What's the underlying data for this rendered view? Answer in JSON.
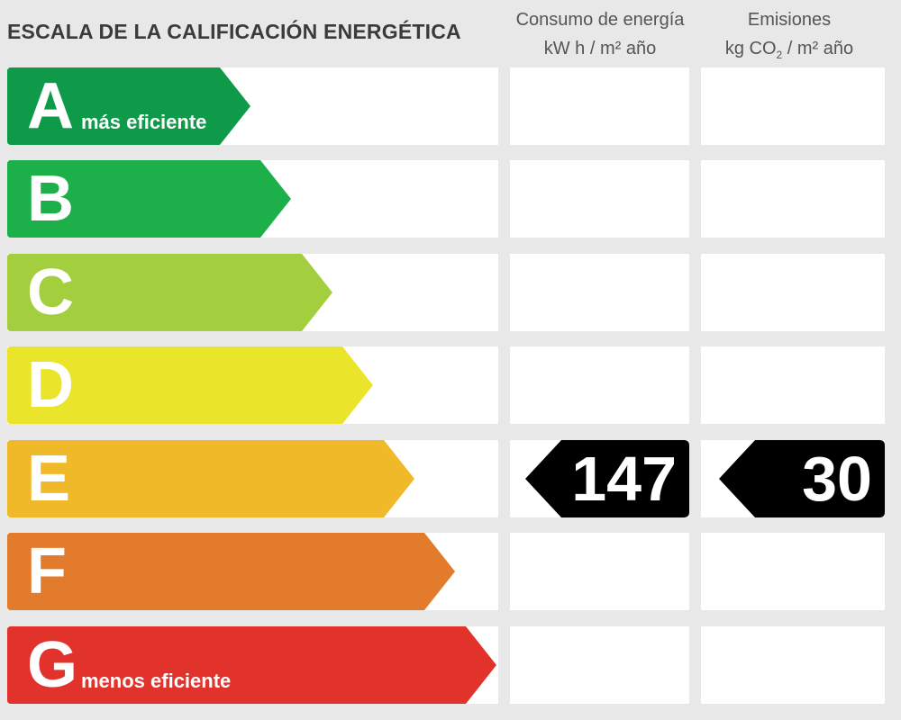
{
  "title": "ESCALA DE LA CALIFICACIÓN ENERGÉTICA",
  "columns": {
    "consumo": {
      "line1": "Consumo de energía",
      "line2": "kW h  / m² año"
    },
    "emisiones": {
      "line1": "Emisiones",
      "line2_pre": "kg CO",
      "line2_sub": "2",
      "line2_post": "  / m² año"
    }
  },
  "classes": [
    {
      "letter": "A",
      "note": "más eficiente",
      "color": "#0f9a4a"
    },
    {
      "letter": "B",
      "note": "",
      "color": "#1db04a"
    },
    {
      "letter": "C",
      "note": "",
      "color": "#a3cf3f"
    },
    {
      "letter": "D",
      "note": "",
      "color": "#eae52a"
    },
    {
      "letter": "E",
      "note": "",
      "color": "#f0b92a"
    },
    {
      "letter": "F",
      "note": "",
      "color": "#e27b2c"
    },
    {
      "letter": "G",
      "note": "menos eficiente",
      "color": "#e2322c"
    }
  ],
  "rating": {
    "class": "E",
    "consumo": "147",
    "emisiones": "30"
  }
}
